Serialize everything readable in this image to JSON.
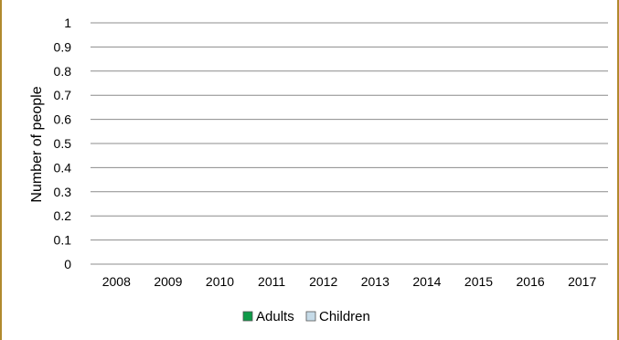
{
  "chart_data": {
    "type": "bar",
    "title": "",
    "xlabel": "",
    "ylabel": "Number of people",
    "categories": [
      "2008",
      "2009",
      "2010",
      "2011",
      "2012",
      "2013",
      "2014",
      "2015",
      "2016",
      "2017"
    ],
    "y_ticks": [
      "0",
      "0.1",
      "0.2",
      "0.3",
      "0.4",
      "0.5",
      "0.6",
      "0.7",
      "0.8",
      "0.9",
      "1"
    ],
    "ylim": [
      0,
      1
    ],
    "grid": true,
    "legend_position": "bottom",
    "series": [
      {
        "name": "Adults",
        "color": "#0e9a48",
        "values": [
          0,
          0,
          0,
          0,
          0,
          0,
          0,
          0,
          0,
          0
        ]
      },
      {
        "name": "Children",
        "color": "#c6dbe8",
        "values": [
          0,
          0,
          0,
          0,
          0,
          0,
          0,
          0,
          0,
          0
        ]
      }
    ]
  },
  "colors": {
    "frame_border": "#b08a2e",
    "gridline": "#8c8c8c"
  }
}
